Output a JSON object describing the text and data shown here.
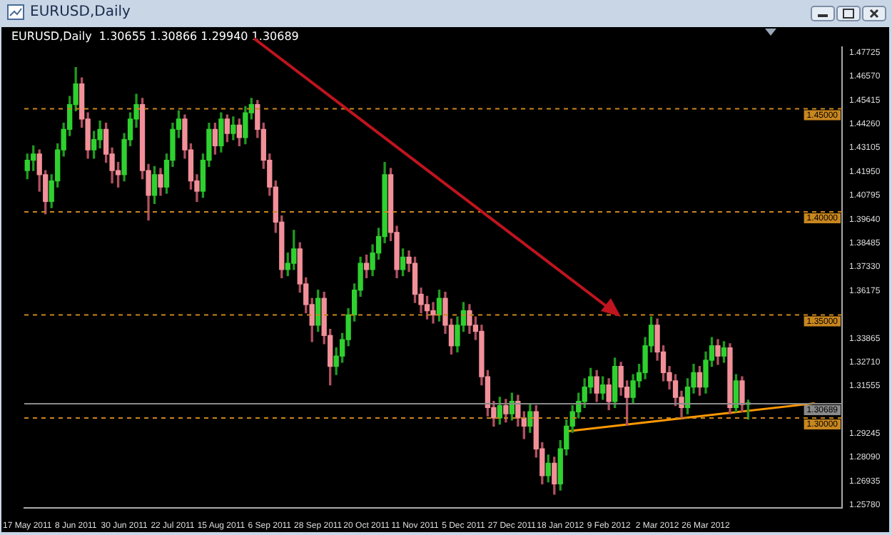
{
  "chart_data": {
    "type": "candlestick",
    "title": "EURUSD,Daily",
    "subtitle": "EURUSD,Daily  1.30655 1.30866 1.29940 1.30689",
    "categories": [
      "17 May 2011",
      null,
      null,
      null,
      null,
      null,
      null,
      null,
      "8 Jun 2011",
      null,
      null,
      null,
      null,
      null,
      null,
      null,
      "30 Jun 2011",
      null,
      null,
      null,
      null,
      null,
      null,
      null,
      "22 Jul 2011",
      null,
      null,
      null,
      null,
      null,
      null,
      null,
      "15 Aug 2011",
      null,
      null,
      null,
      null,
      null,
      null,
      null,
      "6 Sep 2011",
      null,
      null,
      null,
      null,
      null,
      null,
      null,
      "28 Sep 2011",
      null,
      null,
      null,
      null,
      null,
      null,
      null,
      "20 Oct 2011",
      null,
      null,
      null,
      null,
      null,
      null,
      null,
      "11 Nov 2011",
      null,
      null,
      null,
      null,
      null,
      null,
      null,
      "5 Dec 2011",
      null,
      null,
      null,
      null,
      null,
      null,
      null,
      "27 Dec 2011",
      null,
      null,
      null,
      null,
      null,
      null,
      null,
      "18 Jan 2012",
      null,
      null,
      null,
      null,
      null,
      null,
      null,
      "9 Feb 2012",
      null,
      null,
      null,
      null,
      null,
      null,
      null,
      "2 Mar 2012",
      null,
      null,
      null,
      null,
      null,
      null,
      null,
      "26 Mar 2012",
      null,
      null,
      null,
      null,
      null,
      null,
      null,
      null,
      null,
      null,
      null,
      null,
      null,
      null,
      null,
      null,
      null,
      null,
      null,
      null,
      null,
      null
    ],
    "ohlc": [
      [
        1.42,
        1.428,
        1.416,
        1.425
      ],
      [
        1.425,
        1.432,
        1.42,
        1.428
      ],
      [
        1.428,
        1.43,
        1.41,
        1.418
      ],
      [
        1.418,
        1.42,
        1.399,
        1.405
      ],
      [
        1.405,
        1.418,
        1.402,
        1.415
      ],
      [
        1.415,
        1.433,
        1.412,
        1.43
      ],
      [
        1.43,
        1.443,
        1.427,
        1.44
      ],
      [
        1.44,
        1.456,
        1.437,
        1.452
      ],
      [
        1.452,
        1.47,
        1.449,
        1.462
      ],
      [
        1.462,
        1.465,
        1.441,
        1.445
      ],
      [
        1.445,
        1.448,
        1.426,
        1.43
      ],
      [
        1.43,
        1.439,
        1.426,
        1.435
      ],
      [
        1.435,
        1.444,
        1.431,
        1.44
      ],
      [
        1.44,
        1.443,
        1.424,
        1.428
      ],
      [
        1.428,
        1.431,
        1.414,
        1.42
      ],
      [
        1.42,
        1.424,
        1.412,
        1.418
      ],
      [
        1.418,
        1.438,
        1.415,
        1.435
      ],
      [
        1.435,
        1.448,
        1.432,
        1.445
      ],
      [
        1.445,
        1.457,
        1.441,
        1.452
      ],
      [
        1.452,
        1.455,
        1.416,
        1.42
      ],
      [
        1.42,
        1.423,
        1.396,
        1.408
      ],
      [
        1.408,
        1.422,
        1.404,
        1.418
      ],
      [
        1.418,
        1.421,
        1.408,
        1.412
      ],
      [
        1.412,
        1.428,
        1.409,
        1.425
      ],
      [
        1.425,
        1.443,
        1.422,
        1.44
      ],
      [
        1.44,
        1.449,
        1.436,
        1.445
      ],
      [
        1.445,
        1.447,
        1.426,
        1.43
      ],
      [
        1.43,
        1.433,
        1.411,
        1.415
      ],
      [
        1.415,
        1.418,
        1.405,
        1.41
      ],
      [
        1.41,
        1.428,
        1.407,
        1.425
      ],
      [
        1.425,
        1.443,
        1.422,
        1.44
      ],
      [
        1.44,
        1.443,
        1.428,
        1.432
      ],
      [
        1.432,
        1.448,
        1.429,
        1.445
      ],
      [
        1.445,
        1.447,
        1.434,
        1.438
      ],
      [
        1.438,
        1.446,
        1.435,
        1.442
      ],
      [
        1.442,
        1.445,
        1.432,
        1.436
      ],
      [
        1.436,
        1.451,
        1.433,
        1.448
      ],
      [
        1.448,
        1.455,
        1.445,
        1.452
      ],
      [
        1.452,
        1.454,
        1.436,
        1.44
      ],
      [
        1.44,
        1.443,
        1.421,
        1.425
      ],
      [
        1.425,
        1.428,
        1.408,
        1.412
      ],
      [
        1.412,
        1.415,
        1.39,
        1.395
      ],
      [
        1.395,
        1.398,
        1.368,
        1.372
      ],
      [
        1.372,
        1.38,
        1.369,
        1.375
      ],
      [
        1.375,
        1.391,
        1.372,
        1.382
      ],
      [
        1.382,
        1.385,
        1.361,
        1.365
      ],
      [
        1.365,
        1.368,
        1.351,
        1.355
      ],
      [
        1.355,
        1.358,
        1.337,
        1.345
      ],
      [
        1.345,
        1.362,
        1.342,
        1.358
      ],
      [
        1.358,
        1.361,
        1.336,
        1.34
      ],
      [
        1.34,
        1.343,
        1.316,
        1.325
      ],
      [
        1.325,
        1.334,
        1.321,
        1.33
      ],
      [
        1.33,
        1.341,
        1.327,
        1.338
      ],
      [
        1.338,
        1.353,
        1.335,
        1.35
      ],
      [
        1.35,
        1.365,
        1.347,
        1.362
      ],
      [
        1.362,
        1.378,
        1.359,
        1.375
      ],
      [
        1.375,
        1.379,
        1.368,
        1.372
      ],
      [
        1.372,
        1.384,
        1.369,
        1.38
      ],
      [
        1.38,
        1.392,
        1.377,
        1.388
      ],
      [
        1.388,
        1.424,
        1.385,
        1.418
      ],
      [
        1.418,
        1.421,
        1.386,
        1.39
      ],
      [
        1.39,
        1.393,
        1.368,
        1.372
      ],
      [
        1.372,
        1.382,
        1.369,
        1.378
      ],
      [
        1.378,
        1.381,
        1.371,
        1.375
      ],
      [
        1.375,
        1.378,
        1.356,
        1.36
      ],
      [
        1.36,
        1.363,
        1.351,
        1.355
      ],
      [
        1.355,
        1.359,
        1.348,
        1.352
      ],
      [
        1.352,
        1.356,
        1.346,
        1.35
      ],
      [
        1.35,
        1.362,
        1.347,
        1.358
      ],
      [
        1.358,
        1.361,
        1.341,
        1.345
      ],
      [
        1.345,
        1.348,
        1.331,
        1.335
      ],
      [
        1.335,
        1.349,
        1.332,
        1.345
      ],
      [
        1.345,
        1.356,
        1.342,
        1.352
      ],
      [
        1.352,
        1.355,
        1.341,
        1.345
      ],
      [
        1.345,
        1.349,
        1.338,
        1.342
      ],
      [
        1.342,
        1.345,
        1.316,
        1.32
      ],
      [
        1.32,
        1.323,
        1.301,
        1.305
      ],
      [
        1.305,
        1.308,
        1.296,
        1.3
      ],
      [
        1.3,
        1.31,
        1.297,
        1.306
      ],
      [
        1.306,
        1.309,
        1.298,
        1.302
      ],
      [
        1.302,
        1.312,
        1.299,
        1.308
      ],
      [
        1.308,
        1.311,
        1.296,
        1.3
      ],
      [
        1.3,
        1.303,
        1.29,
        1.296
      ],
      [
        1.296,
        1.307,
        1.293,
        1.303
      ],
      [
        1.303,
        1.306,
        1.281,
        1.285
      ],
      [
        1.285,
        1.288,
        1.268,
        1.272
      ],
      [
        1.272,
        1.282,
        1.269,
        1.278
      ],
      [
        1.278,
        1.281,
        1.263,
        1.268
      ],
      [
        1.268,
        1.289,
        1.265,
        1.285
      ],
      [
        1.285,
        1.299,
        1.282,
        1.296
      ],
      [
        1.296,
        1.306,
        1.293,
        1.303
      ],
      [
        1.303,
        1.312,
        1.3,
        1.308
      ],
      [
        1.308,
        1.319,
        1.305,
        1.315
      ],
      [
        1.315,
        1.324,
        1.312,
        1.32
      ],
      [
        1.32,
        1.323,
        1.308,
        1.312
      ],
      [
        1.312,
        1.32,
        1.309,
        1.316
      ],
      [
        1.316,
        1.319,
        1.304,
        1.308
      ],
      [
        1.308,
        1.329,
        1.305,
        1.325
      ],
      [
        1.325,
        1.327,
        1.311,
        1.315
      ],
      [
        1.315,
        1.318,
        1.2965,
        1.31
      ],
      [
        1.31,
        1.321,
        1.307,
        1.318
      ],
      [
        1.318,
        1.326,
        1.315,
        1.322
      ],
      [
        1.322,
        1.339,
        1.319,
        1.335
      ],
      [
        1.335,
        1.349,
        1.332,
        1.345
      ],
      [
        1.345,
        1.348,
        1.328,
        1.332
      ],
      [
        1.332,
        1.335,
        1.318,
        1.322
      ],
      [
        1.322,
        1.325,
        1.314,
        1.318
      ],
      [
        1.318,
        1.321,
        1.306,
        1.31
      ],
      [
        1.31,
        1.313,
        1.3,
        1.305
      ],
      [
        1.305,
        1.319,
        1.302,
        1.315
      ],
      [
        1.315,
        1.326,
        1.312,
        1.322
      ],
      [
        1.322,
        1.325,
        1.311,
        1.315
      ],
      [
        1.315,
        1.332,
        1.312,
        1.328
      ],
      [
        1.328,
        1.339,
        1.325,
        1.335
      ],
      [
        1.335,
        1.338,
        1.326,
        1.33
      ],
      [
        1.33,
        1.337,
        1.327,
        1.334
      ],
      [
        1.334,
        1.336,
        1.302,
        1.305
      ],
      [
        1.305,
        1.321,
        1.303,
        1.318
      ],
      [
        1.318,
        1.32,
        1.303,
        1.3065
      ],
      [
        1.30655,
        1.30866,
        1.2994,
        1.30689
      ],
      null,
      null,
      null,
      null,
      null,
      null,
      null,
      null,
      null,
      null,
      null,
      null,
      null,
      null,
      null
    ],
    "series": [
      {
        "type": "line",
        "color": "#ff9900",
        "values": [
          null,
          null,
          null,
          null,
          null,
          null,
          null,
          null,
          null,
          null,
          null,
          null,
          null,
          null,
          null,
          null,
          null,
          null,
          null,
          null,
          null,
          null,
          null,
          null,
          null,
          null,
          null,
          null,
          null,
          null,
          null,
          null,
          null,
          null,
          null,
          null,
          null,
          null,
          null,
          null,
          null,
          null,
          null,
          null,
          null,
          null,
          null,
          null,
          null,
          null,
          null,
          null,
          null,
          null,
          null,
          null,
          null,
          null,
          null,
          null,
          null,
          null,
          null,
          null,
          null,
          null,
          null,
          null,
          null,
          null,
          null,
          null,
          null,
          null,
          null,
          null,
          null,
          null,
          null,
          null,
          null,
          null,
          null,
          null,
          null,
          null,
          null,
          null,
          null,
          1.2935,
          null,
          null,
          null,
          null,
          null,
          null,
          null,
          null,
          null,
          null,
          null,
          null,
          null,
          null,
          null,
          null,
          null,
          null,
          null,
          null,
          null,
          null,
          null,
          null,
          null,
          null,
          null,
          null,
          null,
          null,
          null,
          null,
          null,
          null,
          null,
          null,
          null,
          null,
          null,
          null,
          1.3071,
          null,
          null,
          null,
          null
        ]
      }
    ],
    "ylim": [
      1.2565,
      1.4799
    ],
    "yticks": [
      1.47725,
      {
        "value": 1.4657,
        "label": "1.46570"
      },
      1.45415,
      {
        "value": 1.4426,
        "label": "1.44260"
      },
      1.43105,
      {
        "value": 1.4195,
        "label": "1.41950"
      },
      1.40795,
      {
        "value": 1.3964,
        "label": "1.39640"
      },
      1.38485,
      {
        "value": 1.3733,
        "label": "1.37330"
      },
      1.36175,
      1.33865,
      {
        "value": 1.3271,
        "label": "1.32710"
      },
      1.31555,
      1.29245,
      {
        "value": 1.2809,
        "label": "1.28090"
      },
      1.26935,
      {
        "value": 1.2578,
        "label": "1.25780"
      }
    ],
    "ref_lines": [
      {
        "axis": "y",
        "value": 1.45,
        "label": "1.45000",
        "color": "#c8861e",
        "line_style": "dashed"
      },
      {
        "axis": "y",
        "value": 1.4,
        "label": "1.40000",
        "color": "#c8861e",
        "line_style": "dashed"
      },
      {
        "axis": "y",
        "value": 1.35,
        "label": "1.35000",
        "color": "#c8861e",
        "line_style": "dashed"
      },
      {
        "axis": "y",
        "value": 1.3,
        "label": "1.30000",
        "color": "#c8861e",
        "line_style": "dashed"
      },
      {
        "axis": "y",
        "value": 1.30689,
        "label": "1.30689",
        "color": "#8a8a8a",
        "line_style": "solid"
      }
    ]
  }
}
